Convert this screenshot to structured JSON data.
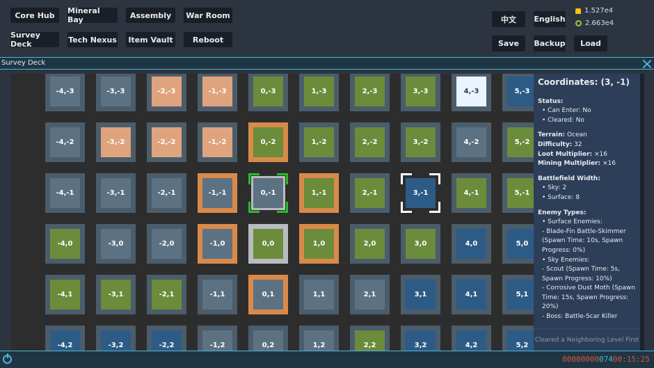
{
  "nav": {
    "core_hub": "Core Hub",
    "mineral_bay": "Mineral Bay",
    "assembly": "Assembly",
    "war_room": "War Room",
    "survey_deck": "Survey Deck",
    "tech_nexus": "Tech Nexus",
    "item_vault": "Item Vault",
    "reboot": "Reboot"
  },
  "lang": {
    "chinese": "中文",
    "english": "English"
  },
  "file": {
    "save": "Save",
    "backup": "Backup",
    "load": "Load"
  },
  "resources": {
    "gold": "1.527e4",
    "gear": "2.663e4"
  },
  "panel": {
    "title": "Survey Deck"
  },
  "colors": {
    "gray": "#5c7283",
    "orange": "#dfa47d",
    "green": "#6b8c3a",
    "blue": "#2c5b85",
    "light": "#eaf4ff",
    "border_orange": "#d98a4a",
    "select_green": "#22c022",
    "border_silver": "#b6bcc2"
  },
  "grid": [
    [
      {
        "l": "-4,-3",
        "t": "gray"
      },
      {
        "l": "-3,-3",
        "t": "gray"
      },
      {
        "l": "-2,-3",
        "t": "orange"
      },
      {
        "l": "-1,-3",
        "t": "orange"
      },
      {
        "l": "0,-3",
        "t": "green"
      },
      {
        "l": "1,-3",
        "t": "green"
      },
      {
        "l": "2,-3",
        "t": "green"
      },
      {
        "l": "3,-3",
        "t": "green"
      },
      {
        "l": "4,-3",
        "t": "light"
      },
      {
        "l": "5,-3",
        "t": "blue"
      }
    ],
    [
      {
        "l": "-4,-2",
        "t": "gray"
      },
      {
        "l": "-3,-2",
        "t": "orange"
      },
      {
        "l": "-2,-2",
        "t": "orange"
      },
      {
        "l": "-1,-2",
        "t": "orange"
      },
      {
        "l": "0,-2",
        "t": "green",
        "b": "orange"
      },
      {
        "l": "1,-2",
        "t": "green"
      },
      {
        "l": "2,-2",
        "t": "green"
      },
      {
        "l": "3,-2",
        "t": "green"
      },
      {
        "l": "4,-2",
        "t": "gray"
      },
      {
        "l": "5,-2",
        "t": "green"
      }
    ],
    [
      {
        "l": "-4,-1",
        "t": "gray"
      },
      {
        "l": "-3,-1",
        "t": "gray"
      },
      {
        "l": "-2,-1",
        "t": "gray"
      },
      {
        "l": "-1,-1",
        "t": "gray",
        "b": "orange"
      },
      {
        "l": "0,-1",
        "t": "gray",
        "b": "green"
      },
      {
        "l": "1,-1",
        "t": "green",
        "b": "orange"
      },
      {
        "l": "2,-1",
        "t": "green"
      },
      {
        "l": "3,-1",
        "t": "blue",
        "b": "white"
      },
      {
        "l": "4,-1",
        "t": "green"
      },
      {
        "l": "5,-1",
        "t": "green"
      }
    ],
    [
      {
        "l": "-4,0",
        "t": "green"
      },
      {
        "l": "-3,0",
        "t": "gray"
      },
      {
        "l": "-2,0",
        "t": "gray"
      },
      {
        "l": "-1,0",
        "t": "gray",
        "b": "orange"
      },
      {
        "l": "0,0",
        "t": "green",
        "b": "silver"
      },
      {
        "l": "1,0",
        "t": "green",
        "b": "orange"
      },
      {
        "l": "2,0",
        "t": "green"
      },
      {
        "l": "3,0",
        "t": "green"
      },
      {
        "l": "4,0",
        "t": "blue"
      },
      {
        "l": "5,0",
        "t": "blue"
      }
    ],
    [
      {
        "l": "-4,1",
        "t": "green"
      },
      {
        "l": "-3,1",
        "t": "green"
      },
      {
        "l": "-2,1",
        "t": "green"
      },
      {
        "l": "-1,1",
        "t": "gray"
      },
      {
        "l": "0,1",
        "t": "gray",
        "b": "orange"
      },
      {
        "l": "1,1",
        "t": "gray"
      },
      {
        "l": "2,1",
        "t": "gray"
      },
      {
        "l": "3,1",
        "t": "blue"
      },
      {
        "l": "4,1",
        "t": "blue"
      },
      {
        "l": "5,1",
        "t": "blue"
      }
    ],
    [
      {
        "l": "-4,2",
        "t": "blue"
      },
      {
        "l": "-3,2",
        "t": "blue"
      },
      {
        "l": "-2,2",
        "t": "blue"
      },
      {
        "l": "-1,2",
        "t": "gray"
      },
      {
        "l": "0,2",
        "t": "gray"
      },
      {
        "l": "1,2",
        "t": "gray"
      },
      {
        "l": "2,2",
        "t": "green"
      },
      {
        "l": "3,2",
        "t": "blue"
      },
      {
        "l": "4,2",
        "t": "blue"
      },
      {
        "l": "5,2",
        "t": "blue"
      }
    ]
  ],
  "info": {
    "coordinates": "Coordinates: (3, -1)",
    "status_label": "Status:",
    "can_enter": "• Can Enter: No",
    "cleared": "• Cleared: No",
    "terrain_label": "Terrain:",
    "terrain_value": " Ocean",
    "difficulty_label": "Difficulty:",
    "difficulty_value": " 32",
    "loot_label": "Loot Multiplier:",
    "loot_value": " ×16",
    "mining_label": "Mining Multiplier:",
    "mining_value": " ×16",
    "width_label": "Battlefield Width:",
    "sky": "• Sky: 2",
    "surface": "• Surface: 8",
    "enemy_label": "Enemy Types:",
    "surface_enemies": "• Surface Enemies:",
    "e1": "- Blade-Fin Battle-Skimmer (Spawn Time: 10s, Spawn Progress: 0%)",
    "sky_enemies": "• Sky Enemies:",
    "e2": "- Scout (Spawn Time: 5s, Spawn Progress: 10%)",
    "e3": "- Corrosive Dust Moth (Spawn Time: 15s, Spawn Progress: 20%)",
    "e4": "- Boss: Battle-Scar Killer",
    "footer": "Cleared a Neighboring Level First"
  },
  "counter": {
    "a": "00000000",
    "b": "074",
    "c": "00:15:25"
  }
}
